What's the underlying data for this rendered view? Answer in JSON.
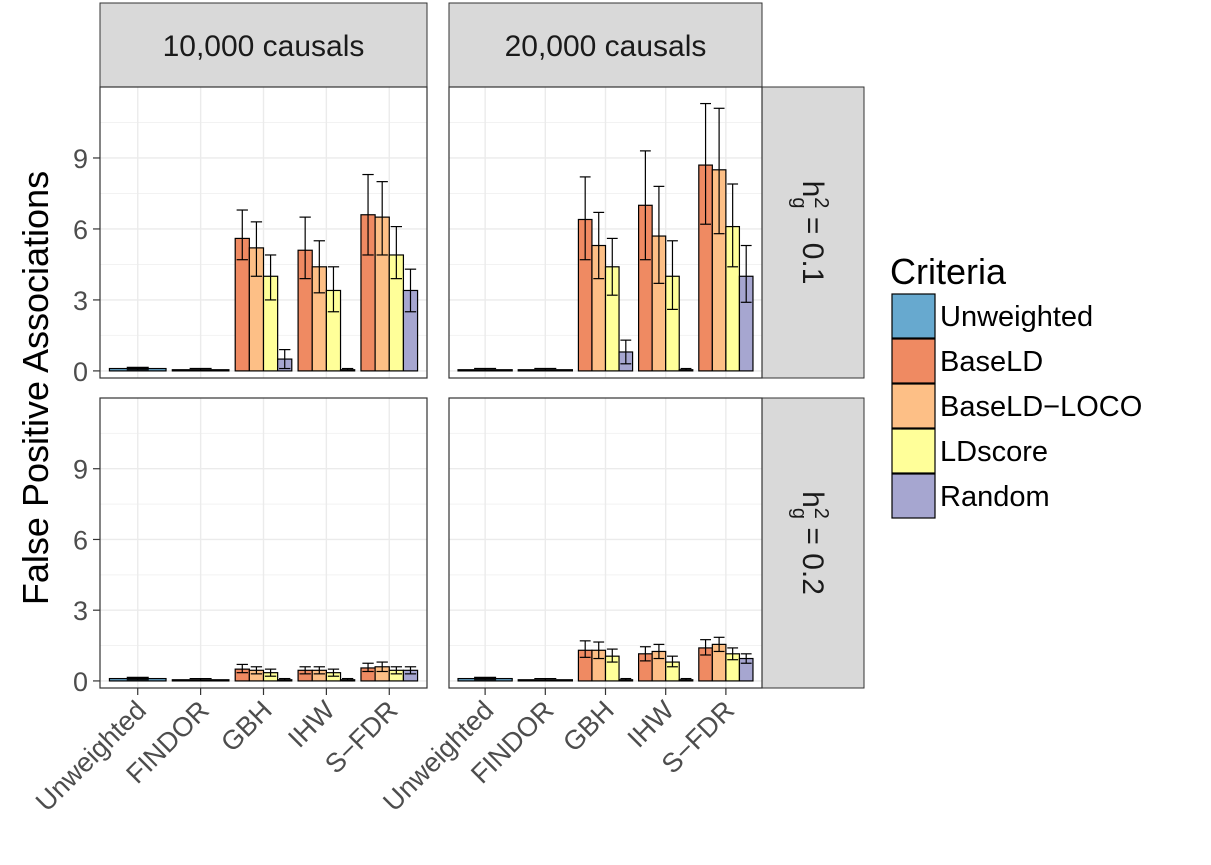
{
  "chart_data": {
    "type": "bar",
    "ylabel": "False Positive Associations",
    "xlabel": "",
    "ylim": [
      -0.3,
      12
    ],
    "yticks": [
      "0",
      "3",
      "6",
      "9"
    ],
    "categories": [
      "Unweighted",
      "FINDOR",
      "GBH",
      "IHW",
      "S−FDR"
    ],
    "columns": [
      "10,000 causals",
      "20,000 causals"
    ],
    "rows": [
      {
        "label_base": "h",
        "label_sup": "2",
        "label_sub": "g",
        "label_rest": " = 0.1"
      },
      {
        "label_base": "h",
        "label_sup": "2",
        "label_sub": "g",
        "label_rest": " = 0.2"
      }
    ],
    "legend": {
      "title": "Criteria",
      "placement": "right",
      "items": [
        {
          "name": "Unweighted",
          "color": "#67a9cf"
        },
        {
          "name": "BaseLD",
          "color": "#ef8a62"
        },
        {
          "name": "BaseLD−LOCO",
          "color": "#fdbf86"
        },
        {
          "name": "LDscore",
          "color": "#ffff99"
        },
        {
          "name": "Random",
          "color": "#a6a6d0"
        }
      ]
    },
    "panels": [
      {
        "row": 0,
        "col": 0,
        "bars": [
          {
            "category": "Unweighted",
            "series": "Unweighted",
            "value": 0.1,
            "err": [
              0.05,
              0.15
            ]
          },
          {
            "category": "FINDOR",
            "series": "Unweighted",
            "value": 0.05,
            "err": [
              0.0,
              0.1
            ]
          },
          {
            "category": "GBH",
            "series": "BaseLD",
            "value": 5.6,
            "err": [
              4.7,
              6.8
            ]
          },
          {
            "category": "GBH",
            "series": "BaseLD−LOCO",
            "value": 5.2,
            "err": [
              4.0,
              6.3
            ]
          },
          {
            "category": "GBH",
            "series": "LDscore",
            "value": 4.0,
            "err": [
              3.0,
              4.9
            ]
          },
          {
            "category": "GBH",
            "series": "Random",
            "value": 0.5,
            "err": [
              0.1,
              0.9
            ]
          },
          {
            "category": "IHW",
            "series": "BaseLD",
            "value": 5.1,
            "err": [
              3.9,
              6.5
            ]
          },
          {
            "category": "IHW",
            "series": "BaseLD−LOCO",
            "value": 4.4,
            "err": [
              3.3,
              5.5
            ]
          },
          {
            "category": "IHW",
            "series": "LDscore",
            "value": 3.4,
            "err": [
              2.5,
              4.4
            ]
          },
          {
            "category": "IHW",
            "series": "Random",
            "value": 0.05,
            "err": [
              0.0,
              0.1
            ]
          },
          {
            "category": "S−FDR",
            "series": "BaseLD",
            "value": 6.6,
            "err": [
              4.9,
              8.3
            ]
          },
          {
            "category": "S−FDR",
            "series": "BaseLD−LOCO",
            "value": 6.5,
            "err": [
              4.9,
              8.0
            ]
          },
          {
            "category": "S−FDR",
            "series": "LDscore",
            "value": 4.9,
            "err": [
              3.9,
              6.1
            ]
          },
          {
            "category": "S−FDR",
            "series": "Random",
            "value": 3.4,
            "err": [
              2.5,
              4.3
            ]
          }
        ]
      },
      {
        "row": 0,
        "col": 1,
        "bars": [
          {
            "category": "Unweighted",
            "series": "Unweighted",
            "value": 0.05,
            "err": [
              0.0,
              0.1
            ]
          },
          {
            "category": "FINDOR",
            "series": "Unweighted",
            "value": 0.05,
            "err": [
              0.0,
              0.1
            ]
          },
          {
            "category": "GBH",
            "series": "BaseLD",
            "value": 6.4,
            "err": [
              4.7,
              8.2
            ]
          },
          {
            "category": "GBH",
            "series": "BaseLD−LOCO",
            "value": 5.3,
            "err": [
              3.9,
              6.7
            ]
          },
          {
            "category": "GBH",
            "series": "LDscore",
            "value": 4.4,
            "err": [
              3.2,
              5.6
            ]
          },
          {
            "category": "GBH",
            "series": "Random",
            "value": 0.8,
            "err": [
              0.3,
              1.3
            ]
          },
          {
            "category": "IHW",
            "series": "BaseLD",
            "value": 7.0,
            "err": [
              4.7,
              9.3
            ]
          },
          {
            "category": "IHW",
            "series": "BaseLD−LOCO",
            "value": 5.7,
            "err": [
              3.7,
              7.8
            ]
          },
          {
            "category": "IHW",
            "series": "LDscore",
            "value": 4.0,
            "err": [
              2.6,
              5.5
            ]
          },
          {
            "category": "IHW",
            "series": "Random",
            "value": 0.05,
            "err": [
              0.0,
              0.1
            ]
          },
          {
            "category": "S−FDR",
            "series": "BaseLD",
            "value": 8.7,
            "err": [
              6.2,
              11.3
            ]
          },
          {
            "category": "S−FDR",
            "series": "BaseLD−LOCO",
            "value": 8.5,
            "err": [
              5.8,
              11.1
            ]
          },
          {
            "category": "S−FDR",
            "series": "LDscore",
            "value": 6.1,
            "err": [
              4.4,
              7.9
            ]
          },
          {
            "category": "S−FDR",
            "series": "Random",
            "value": 4.0,
            "err": [
              2.9,
              5.3
            ]
          }
        ]
      },
      {
        "row": 1,
        "col": 0,
        "bars": [
          {
            "category": "Unweighted",
            "series": "Unweighted",
            "value": 0.1,
            "err": [
              0.05,
              0.15
            ]
          },
          {
            "category": "FINDOR",
            "series": "Unweighted",
            "value": 0.05,
            "err": [
              0.0,
              0.1
            ]
          },
          {
            "category": "GBH",
            "series": "BaseLD",
            "value": 0.5,
            "err": [
              0.35,
              0.7
            ]
          },
          {
            "category": "GBH",
            "series": "BaseLD−LOCO",
            "value": 0.45,
            "err": [
              0.3,
              0.6
            ]
          },
          {
            "category": "GBH",
            "series": "LDscore",
            "value": 0.35,
            "err": [
              0.2,
              0.5
            ]
          },
          {
            "category": "GBH",
            "series": "Random",
            "value": 0.05,
            "err": [
              0.0,
              0.1
            ]
          },
          {
            "category": "IHW",
            "series": "BaseLD",
            "value": 0.45,
            "err": [
              0.3,
              0.6
            ]
          },
          {
            "category": "IHW",
            "series": "BaseLD−LOCO",
            "value": 0.45,
            "err": [
              0.3,
              0.6
            ]
          },
          {
            "category": "IHW",
            "series": "LDscore",
            "value": 0.35,
            "err": [
              0.2,
              0.5
            ]
          },
          {
            "category": "IHW",
            "series": "Random",
            "value": 0.05,
            "err": [
              0.0,
              0.1
            ]
          },
          {
            "category": "S−FDR",
            "series": "BaseLD",
            "value": 0.55,
            "err": [
              0.4,
              0.75
            ]
          },
          {
            "category": "S−FDR",
            "series": "BaseLD−LOCO",
            "value": 0.6,
            "err": [
              0.4,
              0.8
            ]
          },
          {
            "category": "S−FDR",
            "series": "LDscore",
            "value": 0.45,
            "err": [
              0.3,
              0.6
            ]
          },
          {
            "category": "S−FDR",
            "series": "Random",
            "value": 0.45,
            "err": [
              0.3,
              0.6
            ]
          }
        ]
      },
      {
        "row": 1,
        "col": 1,
        "bars": [
          {
            "category": "Unweighted",
            "series": "Unweighted",
            "value": 0.1,
            "err": [
              0.05,
              0.15
            ]
          },
          {
            "category": "FINDOR",
            "series": "Unweighted",
            "value": 0.05,
            "err": [
              0.0,
              0.1
            ]
          },
          {
            "category": "GBH",
            "series": "BaseLD",
            "value": 1.3,
            "err": [
              1.0,
              1.7
            ]
          },
          {
            "category": "GBH",
            "series": "BaseLD−LOCO",
            "value": 1.3,
            "err": [
              0.95,
              1.65
            ]
          },
          {
            "category": "GBH",
            "series": "LDscore",
            "value": 1.05,
            "err": [
              0.8,
              1.35
            ]
          },
          {
            "category": "GBH",
            "series": "Random",
            "value": 0.05,
            "err": [
              0.0,
              0.1
            ]
          },
          {
            "category": "IHW",
            "series": "BaseLD",
            "value": 1.15,
            "err": [
              0.85,
              1.45
            ]
          },
          {
            "category": "IHW",
            "series": "BaseLD−LOCO",
            "value": 1.25,
            "err": [
              0.95,
              1.55
            ]
          },
          {
            "category": "IHW",
            "series": "LDscore",
            "value": 0.8,
            "err": [
              0.6,
              1.05
            ]
          },
          {
            "category": "IHW",
            "series": "Random",
            "value": 0.05,
            "err": [
              0.0,
              0.1
            ]
          },
          {
            "category": "S−FDR",
            "series": "BaseLD",
            "value": 1.4,
            "err": [
              1.1,
              1.75
            ]
          },
          {
            "category": "S−FDR",
            "series": "BaseLD−LOCO",
            "value": 1.55,
            "err": [
              1.25,
              1.85
            ]
          },
          {
            "category": "S−FDR",
            "series": "LDscore",
            "value": 1.15,
            "err": [
              0.9,
              1.4
            ]
          },
          {
            "category": "S−FDR",
            "series": "Random",
            "value": 0.95,
            "err": [
              0.75,
              1.15
            ]
          }
        ]
      }
    ]
  }
}
